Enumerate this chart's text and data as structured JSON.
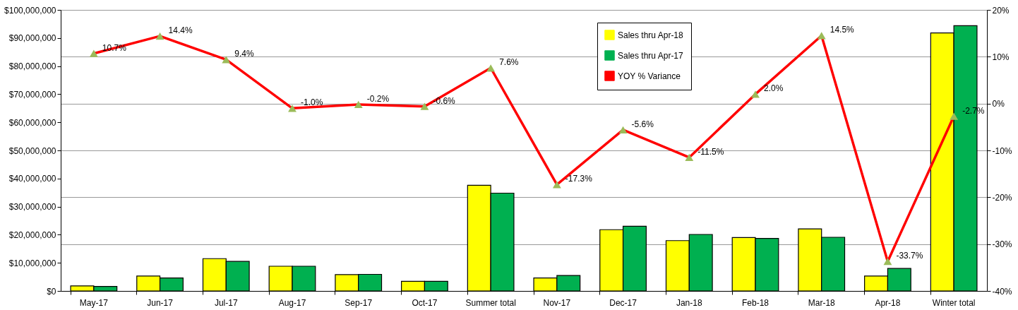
{
  "chart_data": {
    "type": "bar",
    "categories": [
      "May-17",
      "Jun-17",
      "Jul-17",
      "Aug-17",
      "Sep-17",
      "Oct-17",
      "Summer total",
      "Nov-17",
      "Dec-17",
      "Jan-18",
      "Feb-18",
      "Mar-18",
      "Apr-18",
      "Winter total"
    ],
    "series": [
      {
        "name": "Sales thru Apr-18",
        "color": "#ffff00",
        "values": [
          1800000,
          5300000,
          11500000,
          8800000,
          5800000,
          3400000,
          37600000,
          4600000,
          21800000,
          17900000,
          19000000,
          22100000,
          5300000,
          91800000
        ]
      },
      {
        "name": "Sales thru Apr-17",
        "color": "#00b050",
        "values": [
          1600000,
          4600000,
          10500000,
          8800000,
          5900000,
          3400000,
          34800000,
          5500000,
          23000000,
          20100000,
          18700000,
          19100000,
          8000000,
          94400000
        ]
      },
      {
        "name": "YOY % Variance",
        "type": "line",
        "axis": "y2",
        "color": "#ff0000",
        "marker": "triangle",
        "values": [
          10.7,
          14.4,
          9.4,
          -1.0,
          -0.2,
          -0.6,
          7.6,
          -17.3,
          -5.6,
          -11.5,
          2.0,
          14.5,
          -33.7,
          -2.7
        ],
        "value_labels": [
          "10.7%",
          "14.4%",
          "9.4%",
          "-1.0%",
          "-0.2%",
          "-0.6%",
          "7.6%",
          "-17.3%",
          "-5.6%",
          "-11.5%",
          "2.0%",
          "14.5%",
          "-33.7%",
          "-2.7%"
        ]
      }
    ],
    "ylim": [
      0,
      100000000
    ],
    "yticks": [
      {
        "value": 0,
        "label": "$0"
      },
      {
        "value": 10000000,
        "label": "$10,000,000"
      },
      {
        "value": 20000000,
        "label": "$20,000,000"
      },
      {
        "value": 30000000,
        "label": "$30,000,000"
      },
      {
        "value": 40000000,
        "label": "$40,000,000"
      },
      {
        "value": 50000000,
        "label": "$50,000,000"
      },
      {
        "value": 60000000,
        "label": "$60,000,000"
      },
      {
        "value": 70000000,
        "label": "$70,000,000"
      },
      {
        "value": 80000000,
        "label": "$80,000,000"
      },
      {
        "value": 90000000,
        "label": "$90,000,000"
      },
      {
        "value": 100000000,
        "label": "$100,000,000"
      }
    ],
    "y2lim": [
      -40,
      20
    ],
    "y2ticks": [
      {
        "value": -40,
        "label": "-40%"
      },
      {
        "value": -30,
        "label": "-30%"
      },
      {
        "value": -20,
        "label": "-20%"
      },
      {
        "value": -10,
        "label": "-10%"
      },
      {
        "value": 0,
        "label": "0%"
      },
      {
        "value": 10,
        "label": "10%"
      },
      {
        "value": 20,
        "label": "20%"
      }
    ],
    "grid": "y2",
    "legend": "top right"
  }
}
